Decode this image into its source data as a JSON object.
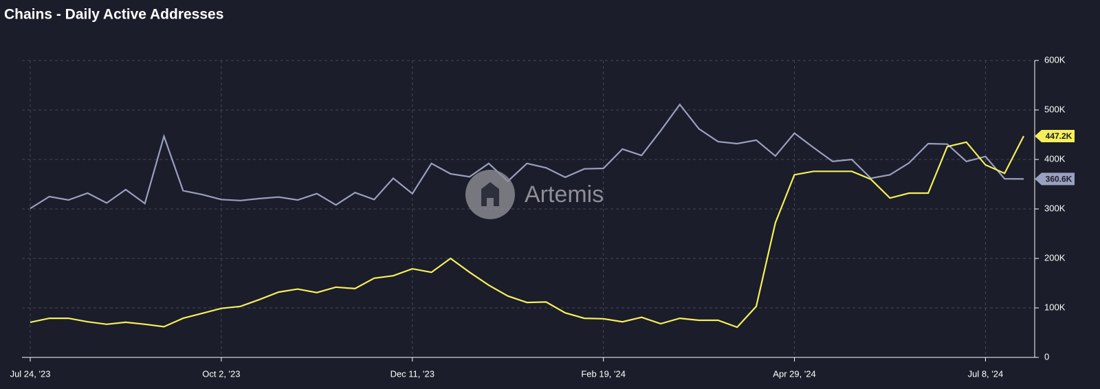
{
  "chart_data": {
    "type": "line",
    "title": "Chains - Daily Active Addresses",
    "watermark": "Artemis",
    "categories": [
      "Jul 24, '23",
      null,
      null,
      null,
      null,
      null,
      null,
      null,
      null,
      null,
      "Oct 2, '23",
      null,
      null,
      null,
      null,
      null,
      null,
      null,
      null,
      null,
      "Dec 11, '23",
      null,
      null,
      null,
      null,
      null,
      null,
      null,
      null,
      null,
      "Feb 19, '24",
      null,
      null,
      null,
      null,
      null,
      null,
      null,
      null,
      null,
      "Apr 29, '24",
      null,
      null,
      null,
      null,
      null,
      null,
      null,
      null,
      null,
      "Jul 8, '24",
      null,
      null
    ],
    "series": [
      {
        "color": "#9aa0bf",
        "values": [
          301000,
          325000,
          318000,
          332000,
          312000,
          339000,
          311000,
          447000,
          337000,
          329000,
          319000,
          317000,
          321000,
          324000,
          318000,
          331000,
          308000,
          333000,
          319000,
          362000,
          331000,
          392000,
          371000,
          365000,
          392000,
          356000,
          392000,
          383000,
          364000,
          381000,
          382000,
          421000,
          408000,
          458000,
          511000,
          462000,
          436000,
          432000,
          439000,
          407000,
          453000,
          424000,
          396000,
          400000,
          362000,
          369000,
          393000,
          432000,
          431000,
          396000,
          406000,
          361000,
          360600
        ],
        "value_labels": [
          null,
          null,
          null,
          null,
          null,
          null,
          null,
          null,
          null,
          null,
          null,
          null,
          null,
          null,
          null,
          null,
          null,
          null,
          null,
          null,
          null,
          null,
          null,
          null,
          null,
          null,
          null,
          null,
          null,
          null,
          null,
          null,
          null,
          null,
          null,
          null,
          null,
          null,
          null,
          null,
          null,
          null,
          null,
          null,
          null,
          null,
          null,
          null,
          null,
          null,
          null,
          null,
          "360.6K"
        ]
      },
      {
        "color": "#f5f05a",
        "values": [
          71000,
          79000,
          79000,
          72000,
          67000,
          71000,
          67000,
          62000,
          79000,
          89000,
          99000,
          103000,
          117000,
          132000,
          138000,
          131000,
          142000,
          139000,
          160000,
          165000,
          179000,
          172000,
          200000,
          172000,
          146000,
          124000,
          111000,
          112000,
          90000,
          79000,
          78000,
          72000,
          81000,
          68000,
          79000,
          75000,
          75000,
          61000,
          103000,
          272000,
          369000,
          376000,
          376000,
          376000,
          360000,
          322000,
          332000,
          332000,
          426000,
          435000,
          389000,
          372000,
          447200
        ],
        "value_labels": [
          null,
          null,
          null,
          null,
          null,
          null,
          null,
          null,
          null,
          null,
          null,
          null,
          null,
          null,
          null,
          null,
          null,
          null,
          null,
          null,
          null,
          null,
          null,
          null,
          null,
          null,
          null,
          null,
          null,
          null,
          null,
          null,
          null,
          null,
          null,
          null,
          null,
          null,
          null,
          null,
          null,
          null,
          null,
          null,
          null,
          null,
          null,
          null,
          null,
          null,
          null,
          null,
          "447.2K"
        ]
      }
    ],
    "ylim": [
      0,
      600000
    ],
    "yticks": [
      0,
      {
        "value": 100000,
        "label": "100K"
      },
      {
        "value": 200000,
        "label": "200K"
      },
      {
        "value": 300000,
        "label": "300K"
      },
      {
        "value": 400000,
        "label": "400K"
      },
      {
        "value": 500000,
        "label": "500K"
      },
      {
        "value": 600000,
        "label": "600K"
      }
    ],
    "grid": true
  }
}
